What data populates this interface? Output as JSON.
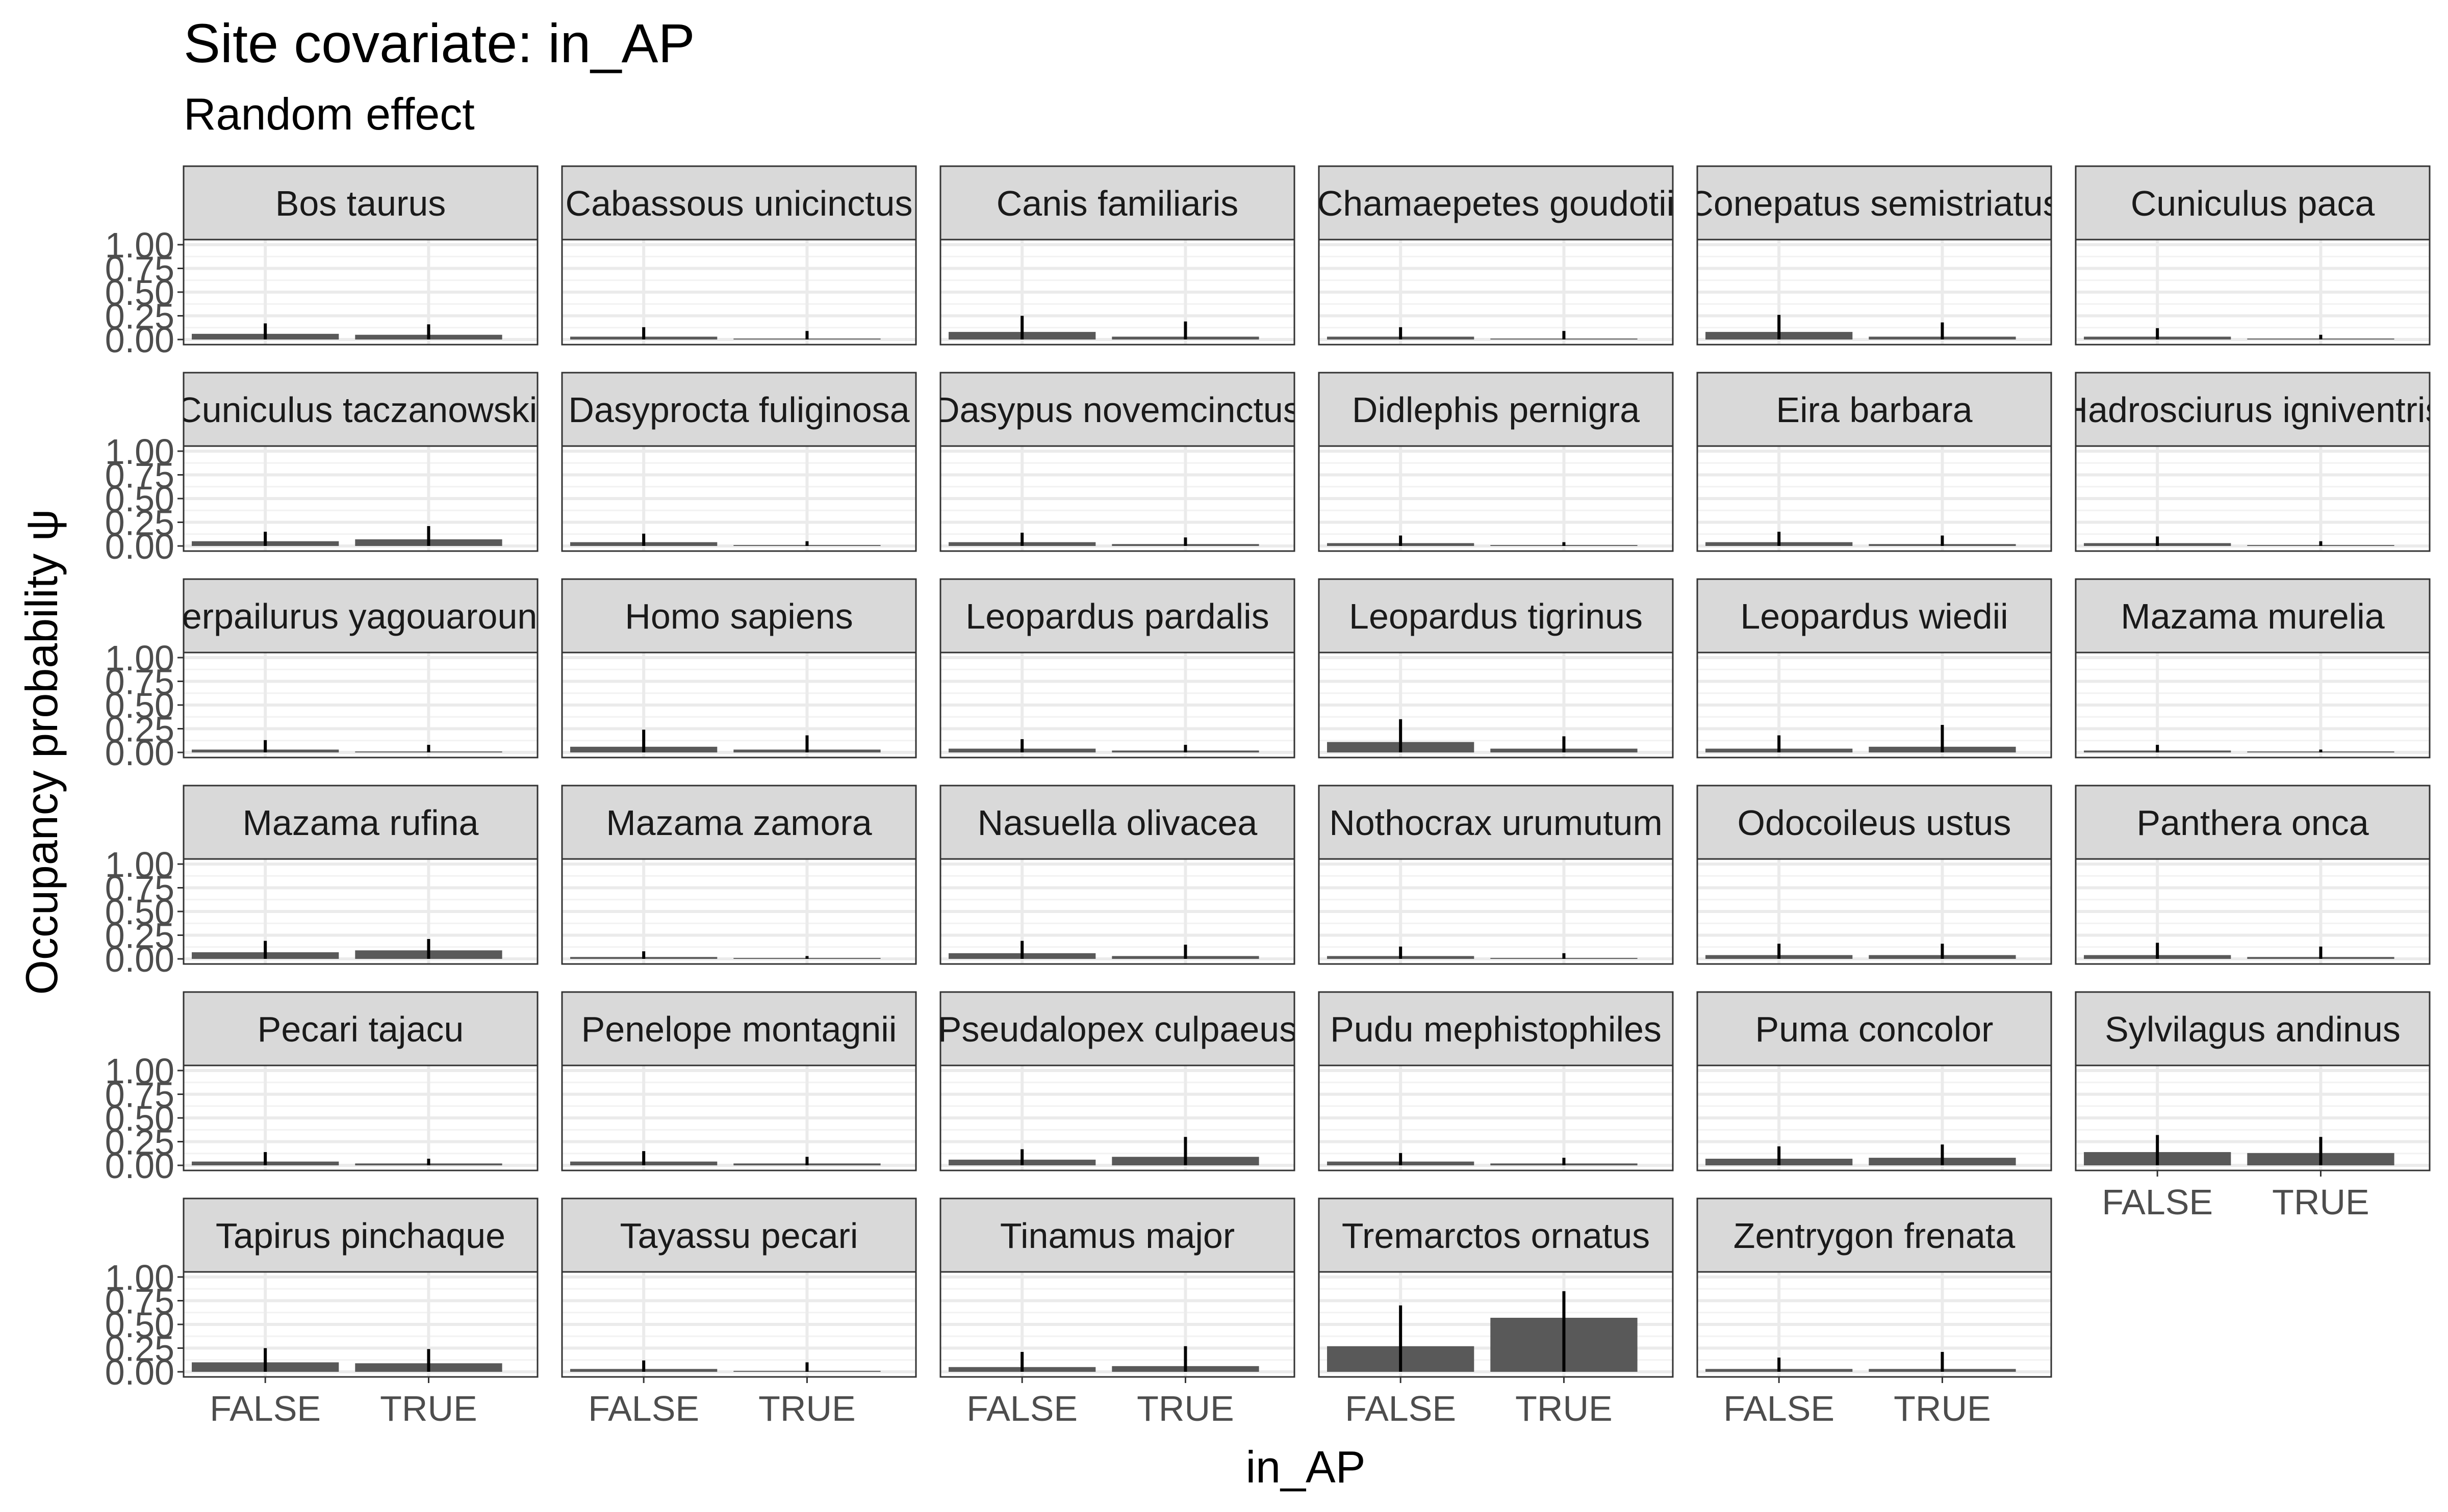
{
  "chart_data": {
    "type": "bar",
    "title": "Site covariate: in_AP",
    "subtitle": "Random effect",
    "xlabel": "in_AP",
    "ylabel": "Occupancy probability  ψ",
    "ylim": [
      0,
      1
    ],
    "y_ticks": [
      "0.00",
      "0.25",
      "0.50",
      "0.75",
      "1.00"
    ],
    "categories": [
      "FALSE",
      "TRUE"
    ],
    "grid": true,
    "bar_color": "#595959",
    "panels": [
      {
        "name": "Bos taurus",
        "values": [
          0.06,
          0.05
        ],
        "upper": [
          0.17,
          0.16
        ]
      },
      {
        "name": "Cabassous unicinctus",
        "values": [
          0.03,
          0.01
        ],
        "upper": [
          0.13,
          0.09
        ]
      },
      {
        "name": "Canis familiaris",
        "values": [
          0.08,
          0.03
        ],
        "upper": [
          0.25,
          0.19
        ]
      },
      {
        "name": "Chamaepetes goudotii",
        "values": [
          0.03,
          0.01
        ],
        "upper": [
          0.13,
          0.09
        ]
      },
      {
        "name": "Conepatus semistriatus",
        "values": [
          0.08,
          0.03
        ],
        "upper": [
          0.26,
          0.18
        ]
      },
      {
        "name": "Cuniculus paca",
        "values": [
          0.03,
          0.01
        ],
        "upper": [
          0.12,
          0.05
        ]
      },
      {
        "name": "Cuniculus taczanowskii",
        "values": [
          0.05,
          0.07
        ],
        "upper": [
          0.15,
          0.21
        ]
      },
      {
        "name": "Dasyprocta fuliginosa",
        "values": [
          0.04,
          0.01
        ],
        "upper": [
          0.13,
          0.05
        ]
      },
      {
        "name": "Dasypus novemcinctus",
        "values": [
          0.04,
          0.02
        ],
        "upper": [
          0.14,
          0.09
        ]
      },
      {
        "name": "Didlephis pernigra",
        "values": [
          0.03,
          0.01
        ],
        "upper": [
          0.11,
          0.04
        ]
      },
      {
        "name": "Eira barbara",
        "values": [
          0.04,
          0.02
        ],
        "upper": [
          0.15,
          0.11
        ]
      },
      {
        "name": "Hadrosciurus igniventris",
        "values": [
          0.03,
          0.01
        ],
        "upper": [
          0.1,
          0.05
        ]
      },
      {
        "name": "Herpailurus yagouaroundi",
        "values": [
          0.03,
          0.01
        ],
        "upper": [
          0.13,
          0.08
        ]
      },
      {
        "name": "Homo sapiens",
        "values": [
          0.06,
          0.03
        ],
        "upper": [
          0.24,
          0.18
        ]
      },
      {
        "name": "Leopardus pardalis",
        "values": [
          0.04,
          0.02
        ],
        "upper": [
          0.14,
          0.08
        ]
      },
      {
        "name": "Leopardus tigrinus",
        "values": [
          0.11,
          0.04
        ],
        "upper": [
          0.35,
          0.17
        ]
      },
      {
        "name": "Leopardus wiedii",
        "values": [
          0.04,
          0.06
        ],
        "upper": [
          0.18,
          0.29
        ]
      },
      {
        "name": "Mazama murelia",
        "values": [
          0.02,
          0.01
        ],
        "upper": [
          0.08,
          0.03
        ]
      },
      {
        "name": "Mazama rufina",
        "values": [
          0.07,
          0.09
        ],
        "upper": [
          0.19,
          0.21
        ]
      },
      {
        "name": "Mazama zamora",
        "values": [
          0.02,
          0.01
        ],
        "upper": [
          0.08,
          0.03
        ]
      },
      {
        "name": "Nasuella olivacea",
        "values": [
          0.06,
          0.03
        ],
        "upper": [
          0.19,
          0.15
        ]
      },
      {
        "name": "Nothocrax urumutum",
        "values": [
          0.03,
          0.01
        ],
        "upper": [
          0.13,
          0.06
        ]
      },
      {
        "name": "Odocoileus ustus",
        "values": [
          0.04,
          0.04
        ],
        "upper": [
          0.16,
          0.16
        ]
      },
      {
        "name": "Panthera onca",
        "values": [
          0.04,
          0.02
        ],
        "upper": [
          0.17,
          0.13
        ]
      },
      {
        "name": "Pecari tajacu",
        "values": [
          0.04,
          0.02
        ],
        "upper": [
          0.14,
          0.07
        ]
      },
      {
        "name": "Penelope montagnii",
        "values": [
          0.04,
          0.02
        ],
        "upper": [
          0.15,
          0.09
        ]
      },
      {
        "name": "Pseudalopex culpaeus",
        "values": [
          0.06,
          0.09
        ],
        "upper": [
          0.17,
          0.3
        ]
      },
      {
        "name": "Pudu mephistophiles",
        "values": [
          0.04,
          0.02
        ],
        "upper": [
          0.13,
          0.08
        ]
      },
      {
        "name": "Puma concolor",
        "values": [
          0.07,
          0.08
        ],
        "upper": [
          0.2,
          0.22
        ]
      },
      {
        "name": "Sylvilagus andinus",
        "values": [
          0.14,
          0.13
        ],
        "upper": [
          0.32,
          0.3
        ]
      },
      {
        "name": "Tapirus pinchaque",
        "values": [
          0.1,
          0.09
        ],
        "upper": [
          0.25,
          0.24
        ]
      },
      {
        "name": "Tayassu pecari",
        "values": [
          0.03,
          0.01
        ],
        "upper": [
          0.12,
          0.1
        ]
      },
      {
        "name": "Tinamus major",
        "values": [
          0.05,
          0.06
        ],
        "upper": [
          0.21,
          0.27
        ]
      },
      {
        "name": "Tremarctos ornatus",
        "values": [
          0.27,
          0.57
        ],
        "upper": [
          0.7,
          0.85
        ]
      },
      {
        "name": "Zentrygon frenata",
        "values": [
          0.03,
          0.03
        ],
        "upper": [
          0.15,
          0.21
        ]
      }
    ]
  }
}
